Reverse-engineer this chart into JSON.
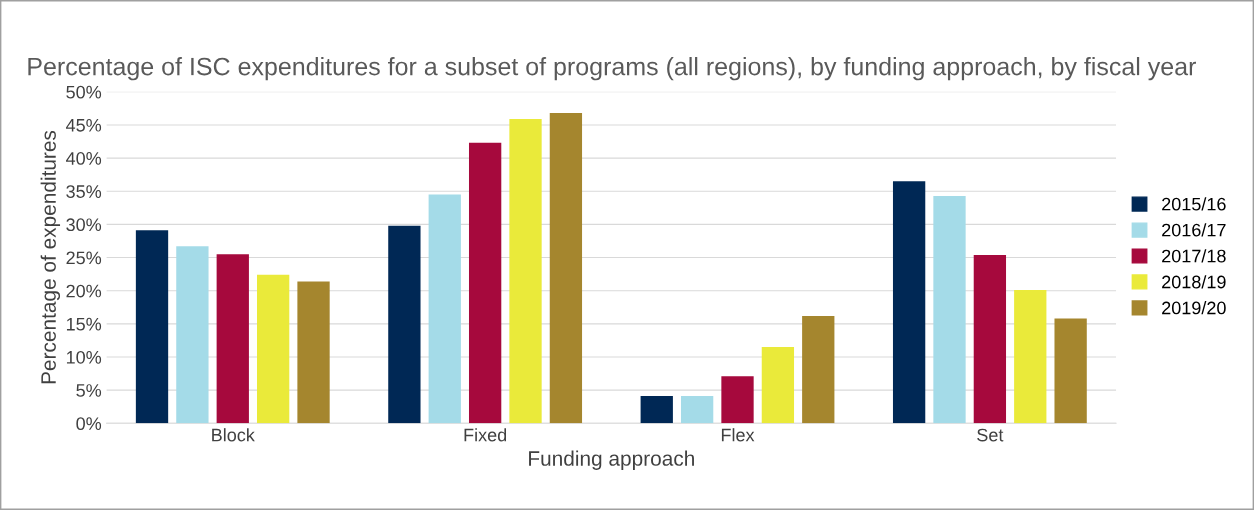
{
  "chart_data": {
    "type": "bar",
    "title": "Percentage of ISC expenditures for a subset of programs (all regions), by funding approach, by fiscal year",
    "xlabel": "Funding approach",
    "ylabel": "Percentage of expenditures",
    "categories": [
      "Block",
      "Fixed",
      "Flex",
      "Set"
    ],
    "series": [
      {
        "name": "2015/16",
        "color": "#002855",
        "values": [
          29.1,
          29.8,
          4.1,
          36.5
        ]
      },
      {
        "name": "2016/17",
        "color": "#a4dbe8",
        "values": [
          26.7,
          34.5,
          4.1,
          34.3
        ]
      },
      {
        "name": "2017/18",
        "color": "#a6093d",
        "values": [
          25.5,
          42.3,
          7.1,
          25.4
        ]
      },
      {
        "name": "2018/19",
        "color": "#eaea3a",
        "values": [
          22.4,
          45.9,
          11.5,
          20.1
        ]
      },
      {
        "name": "2019/20",
        "color": "#a5862e",
        "values": [
          21.4,
          46.8,
          16.2,
          15.8
        ]
      }
    ],
    "ylim": [
      0,
      50
    ],
    "yticks": [
      {
        "value": 0,
        "label": "0%"
      },
      {
        "value": 5,
        "label": "5%"
      },
      {
        "value": 10,
        "label": "10%"
      },
      {
        "value": 15,
        "label": "15%"
      },
      {
        "value": 20,
        "label": "20%"
      },
      {
        "value": 25,
        "label": "25%"
      },
      {
        "value": 30,
        "label": "30%"
      },
      {
        "value": 35,
        "label": "35%"
      },
      {
        "value": 40,
        "label": "40%"
      },
      {
        "value": 45,
        "label": "45%"
      },
      {
        "value": 50,
        "label": "50%"
      }
    ],
    "grid": "y",
    "legend": "right"
  }
}
